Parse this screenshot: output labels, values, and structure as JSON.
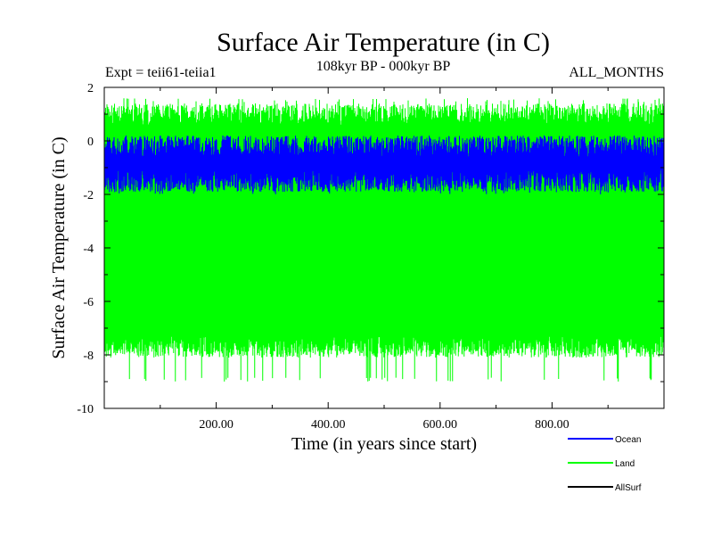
{
  "chart_data": {
    "type": "line",
    "title": "Surface Air Temperature (in C)",
    "subtitle": "108kyr BP - 000kyr BP",
    "left_note": "Expt = teii61-teiia1",
    "right_note": "ALL_MONTHS",
    "xlabel": "Time (in years since start)",
    "ylabel": "Surface Air Temperature (in C)",
    "xlim": [
      0,
      1000
    ],
    "ylim": [
      -10,
      2
    ],
    "x_ticks": [
      200,
      400,
      600,
      800
    ],
    "x_tick_labels": [
      "200.00",
      "400.00",
      "600.00",
      "800.00"
    ],
    "y_ticks": [
      2,
      0,
      -2,
      -4,
      -6,
      -8,
      -10
    ],
    "y_tick_labels": [
      "2",
      "0",
      "-2",
      "-4",
      "-6",
      "-8",
      "-10"
    ],
    "grid": false,
    "legend_position": "bottom-right",
    "series": [
      {
        "name": "Land",
        "color": "#00ff00",
        "x_range": [
          0,
          1000
        ],
        "seasonal_max_approx": 1.0,
        "seasonal_min_approx": -7.7,
        "upper_extreme": 1.6,
        "lower_extreme": -9.0
      },
      {
        "name": "Ocean",
        "color": "#0000ff",
        "x_range": [
          0,
          1000
        ],
        "seasonal_max_approx": -0.2,
        "seasonal_min_approx": -1.5,
        "upper_extreme": 0.2,
        "lower_extreme": -2.0
      },
      {
        "name": "AllSurf",
        "color": "#000000",
        "x_range": [
          0,
          1000
        ],
        "note": "hidden beneath other series"
      }
    ]
  }
}
